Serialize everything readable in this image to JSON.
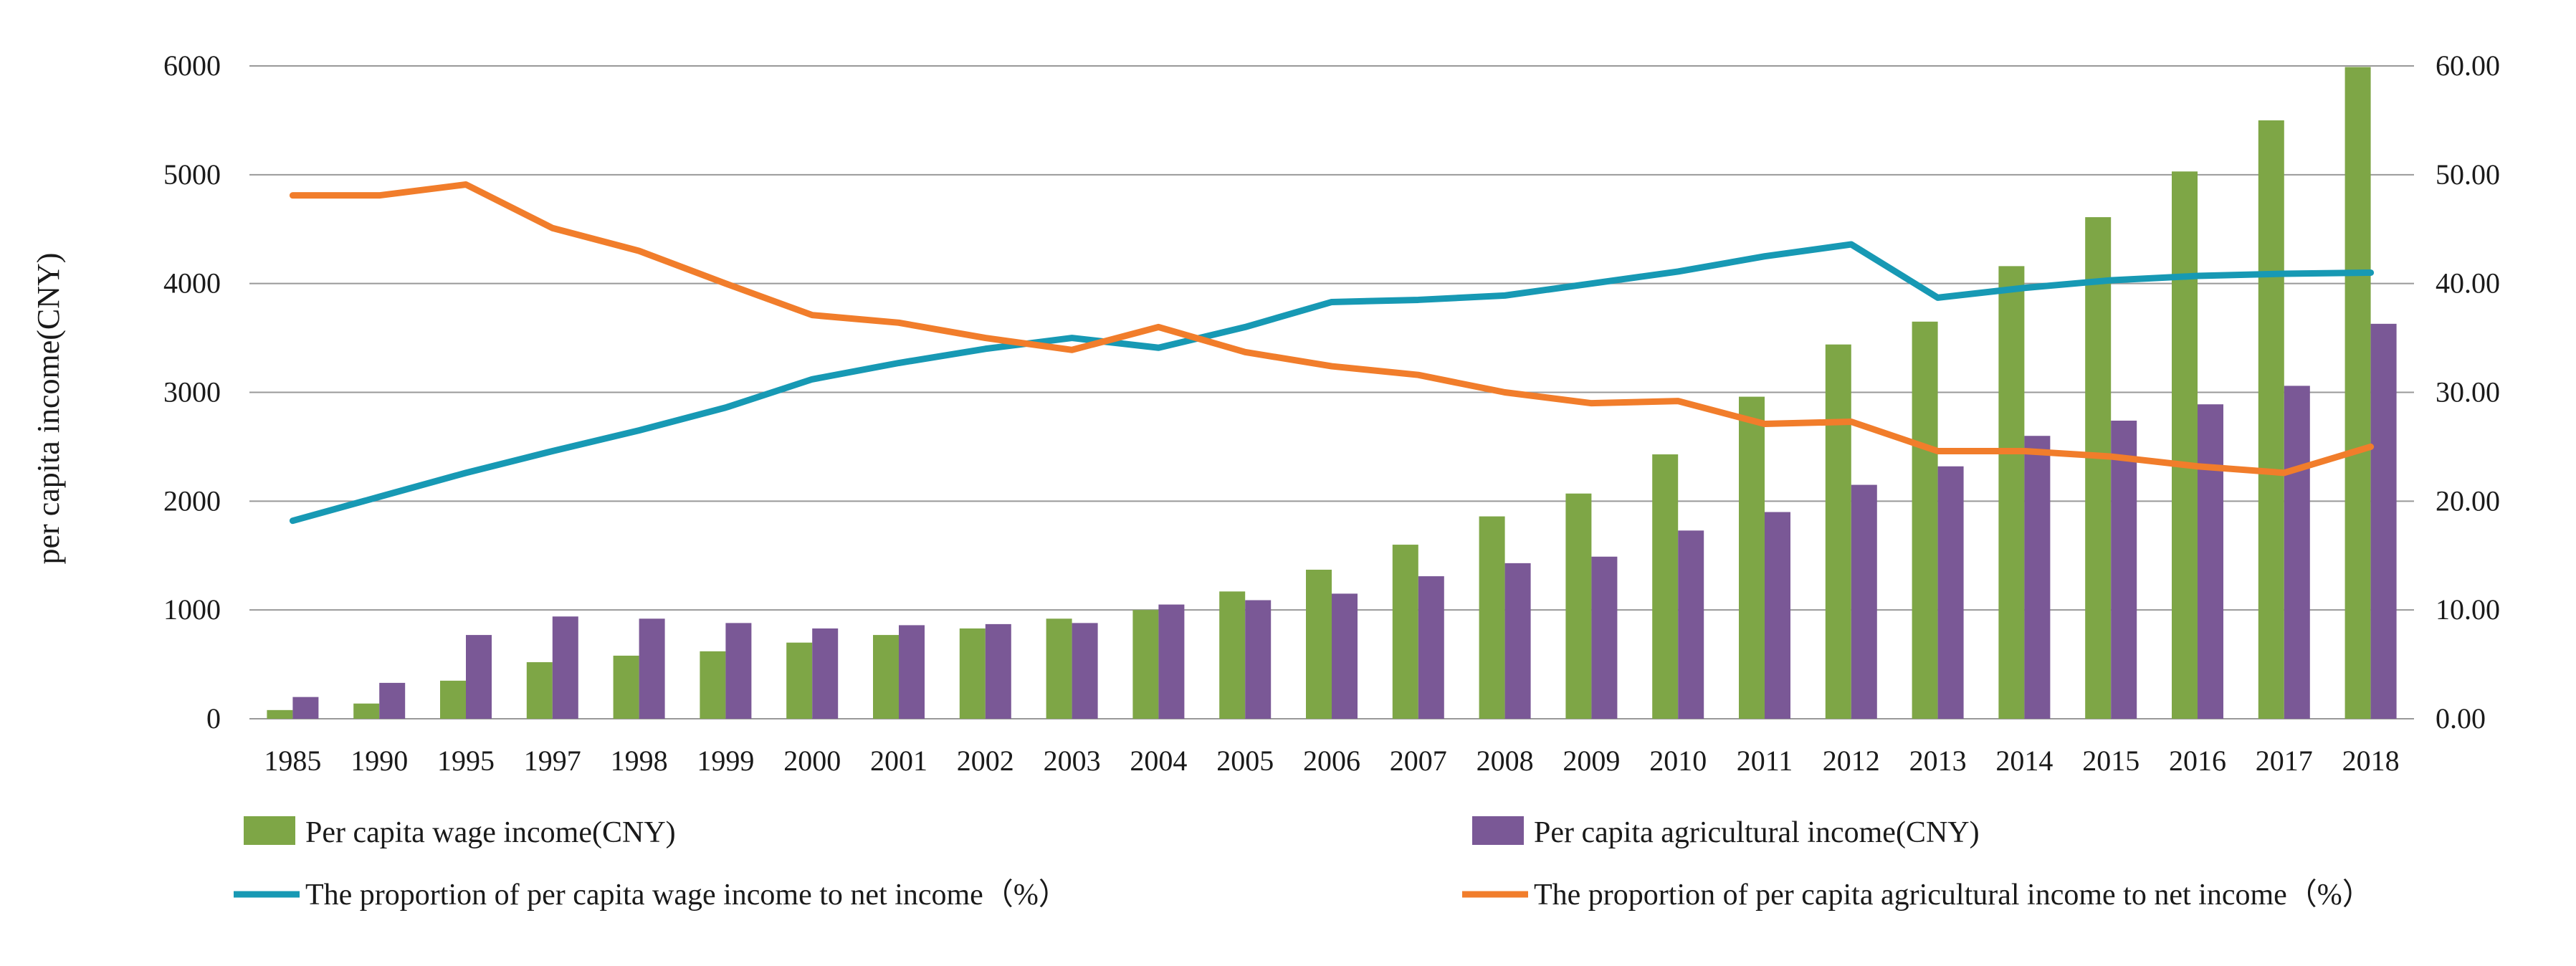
{
  "chart_data": {
    "type": "bar",
    "categories": [
      "1985",
      "1990",
      "1995",
      "1997",
      "1998",
      "1999",
      "2000",
      "2001",
      "2002",
      "2003",
      "2004",
      "2005",
      "2006",
      "2007",
      "2008",
      "2009",
      "2010",
      "2011",
      "2012",
      "2013",
      "2014",
      "2015",
      "2016",
      "2017",
      "2018"
    ],
    "ylabel": "per capita income(CNY)",
    "ylim": [
      0,
      6000
    ],
    "y_ticks": [
      "0",
      "1000",
      "2000",
      "3000",
      "4000",
      "5000",
      "6000"
    ],
    "y2lim": [
      0,
      60
    ],
    "y2_ticks": [
      "0.00",
      "10.00",
      "20.00",
      "30.00",
      "40.00",
      "50.00",
      "60.00"
    ],
    "grid": true,
    "legend_position": "bottom",
    "series": [
      {
        "name": "Per capita wage income(CNY)",
        "kind": "bar",
        "axis": "left",
        "color": "#7ea646",
        "values": [
          80,
          140,
          350,
          520,
          580,
          620,
          700,
          770,
          830,
          920,
          1000,
          1170,
          1370,
          1600,
          1860,
          2070,
          2430,
          2960,
          3440,
          3650,
          4160,
          4610,
          5030,
          5500,
          5990
        ]
      },
      {
        "name": "Per capita agricultural income(CNY)",
        "kind": "bar",
        "axis": "left",
        "color": "#7a5896",
        "values": [
          200,
          330,
          770,
          940,
          920,
          880,
          830,
          860,
          870,
          880,
          1050,
          1090,
          1150,
          1310,
          1430,
          1490,
          1730,
          1900,
          2150,
          2320,
          2600,
          2740,
          2890,
          3060,
          3630
        ]
      },
      {
        "name": "The proportion of per capita wage income to net income（%）",
        "kind": "line",
        "axis": "right",
        "color": "#1799b4",
        "values": [
          18.2,
          20.4,
          22.6,
          24.6,
          26.5,
          28.6,
          31.2,
          32.7,
          34.0,
          35.0,
          34.1,
          36.0,
          38.3,
          38.5,
          38.9,
          40.0,
          41.1,
          42.5,
          43.6,
          38.7,
          39.6,
          40.3,
          40.7,
          40.9,
          41.0
        ]
      },
      {
        "name": "The proportion of per capita agricultural income to net income（%）",
        "kind": "line",
        "axis": "right",
        "color": "#f17d2b",
        "values": [
          48.1,
          48.1,
          49.1,
          45.1,
          43.0,
          40.0,
          37.1,
          36.4,
          35.0,
          33.9,
          36.0,
          33.7,
          32.4,
          31.6,
          30.0,
          29.0,
          29.2,
          27.1,
          27.3,
          24.6,
          24.6,
          24.1,
          23.2,
          22.6,
          25.0
        ]
      }
    ]
  }
}
